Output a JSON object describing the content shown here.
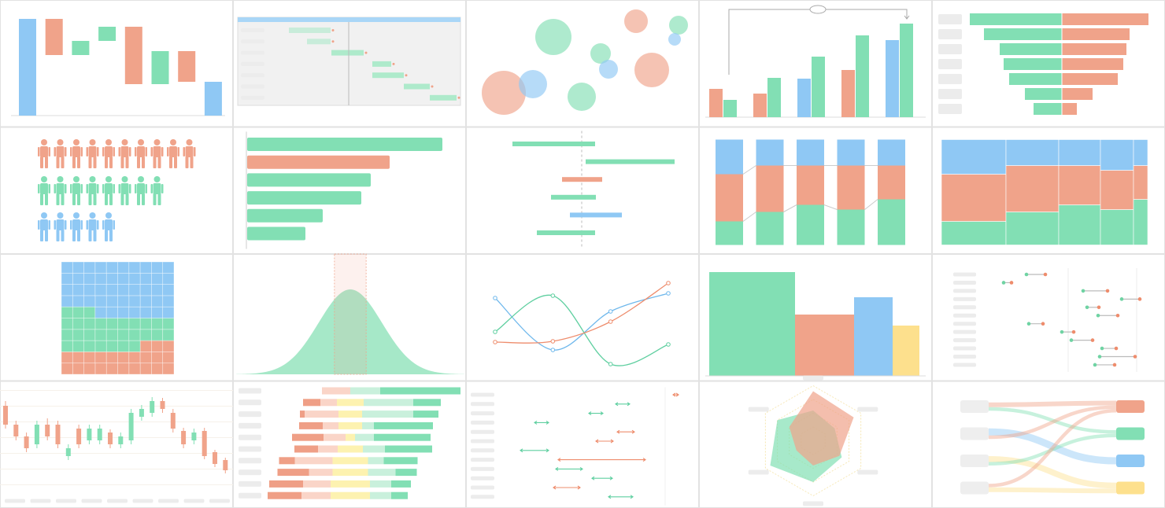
{
  "panels": [
    {
      "type": "waterfall",
      "values": [
        123,
        -46,
        18,
        18,
        -73,
        42,
        -39
      ],
      "ylim": [
        0,
        130
      ],
      "colors": {
        "total": "#8fc8f4",
        "up": "#82dfb4",
        "down": "#f0a38a"
      }
    },
    {
      "type": "gantt",
      "tasks": [
        [
          65,
          118
        ],
        [
          88,
          118
        ],
        [
          119,
          160
        ],
        [
          171,
          195
        ],
        [
          171,
          211
        ],
        [
          211,
          244
        ],
        [
          244,
          278
        ]
      ],
      "xlim": [
        0,
        283
      ],
      "marker": 141,
      "color": "#aeeacb",
      "header_color": "#a9d6f7",
      "dot_color": "#f0a38a"
    },
    {
      "type": "bubble",
      "x": [
        111,
        216,
        270,
        265,
        171,
        181,
        236,
        48,
        85,
        147
      ],
      "y": [
        114,
        134,
        129,
        111,
        93,
        73,
        72,
        43,
        54,
        38
      ],
      "size": [
        23,
        15,
        12,
        8,
        13,
        12,
        22,
        28,
        18,
        18
      ],
      "colors": [
        "#82dfb4",
        "#f0a38a",
        "#82dfb4",
        "#8fc8f4",
        "#82dfb4",
        "#8fc8f4",
        "#f0a38a",
        "#f0a38a",
        "#8fc8f4",
        "#82dfb4"
      ],
      "xlim": [
        0,
        296
      ],
      "ylim": [
        0,
        161
      ]
    },
    {
      "type": "grouped_bar",
      "series": [
        {
          "colors": [
            "#f0a38a",
            "#f0a38a",
            "#8fc8f4",
            "#f0a38a",
            "#8fc8f4"
          ],
          "values": [
            36,
            30,
            49,
            60,
            98
          ]
        },
        {
          "colors": [
            "#82dfb4",
            "#82dfb4",
            "#82dfb4",
            "#82dfb4",
            "#82dfb4"
          ],
          "values": [
            22,
            50,
            77,
            104,
            119
          ]
        }
      ],
      "ylim": [
        0,
        130
      ]
    },
    {
      "type": "butterfly",
      "left": [
        117,
        99,
        79,
        74,
        67,
        47,
        36
      ],
      "right": [
        110,
        86,
        82,
        78,
        71,
        39,
        19
      ],
      "colors": [
        "#82dfb4",
        "#f0a38a"
      ]
    },
    {
      "type": "pictogram",
      "values": [
        10,
        8,
        5
      ],
      "colors": [
        "#f0a38a",
        "#82dfb4",
        "#8fc8f4"
      ]
    },
    {
      "type": "hbar",
      "values": [
        248,
        181,
        157,
        145,
        96,
        74
      ],
      "colors": [
        "#82dfb4",
        "#f0a38a",
        "#82dfb4",
        "#82dfb4",
        "#82dfb4",
        "#82dfb4"
      ],
      "xlim": [
        0,
        260
      ]
    },
    {
      "type": "rangebar",
      "ranges": [
        [
          -88,
          17
        ],
        [
          5,
          118
        ],
        [
          -25,
          26
        ],
        [
          -39,
          18
        ],
        [
          -15,
          51
        ],
        [
          -57,
          17
        ]
      ],
      "colors": [
        "#82dfb4",
        "#82dfb4",
        "#f0a38a",
        "#82dfb4",
        "#8fc8f4",
        "#82dfb4"
      ],
      "xlim": [
        -147,
        149
      ]
    },
    {
      "type": "stack100",
      "series": [
        {
          "color": "#82dfb4",
          "values": [
            30,
            42,
            51,
            45,
            58
          ]
        },
        {
          "color": "#f0a38a",
          "values": [
            60,
            59,
            50,
            56,
            43
          ]
        },
        {
          "color": "#8fc8f4",
          "values": [
            44,
            33,
            33,
            33,
            33
          ]
        }
      ],
      "ylim": [
        0,
        134
      ]
    },
    {
      "type": "mekko",
      "widths": [
        82,
        67,
        53,
        42,
        18
      ],
      "series": [
        {
          "color": "#82dfb4",
          "values": [
            30,
            42,
            51,
            45,
            58
          ]
        },
        {
          "color": "#f0a38a",
          "values": [
            60,
            59,
            50,
            50,
            43
          ]
        },
        {
          "color": "#8fc8f4",
          "values": [
            44,
            33,
            33,
            39,
            33
          ]
        }
      ],
      "ylim": [
        0,
        134
      ]
    },
    {
      "type": "waffle",
      "values": [
        23,
        30,
        47
      ],
      "colors": [
        "#f0a38a",
        "#82dfb4",
        "#8fc8f4"
      ]
    },
    {
      "type": "density",
      "mean": 0,
      "sd": 1,
      "xlim": [
        -3.6,
        3.6
      ],
      "band": [
        -0.5,
        0.5
      ],
      "color": "#a6e8c8",
      "band_color": "#f0a38a"
    },
    {
      "type": "line",
      "x": [
        0,
        1,
        2,
        3
      ],
      "xlim": [
        0,
        3
      ],
      "series": [
        {
          "color": "#6fb8ec",
          "values": [
            101,
            35,
            84,
            107
          ]
        },
        {
          "color": "#5fcfa0",
          "values": [
            58,
            104,
            17,
            42
          ]
        },
        {
          "color": "#ee8c6c",
          "values": [
            45,
            46,
            71,
            120
          ]
        }
      ],
      "ylim": [
        0,
        130
      ]
    },
    {
      "type": "varwidth",
      "widths": [
        109,
        75,
        49,
        34
      ],
      "values": [
        132,
        78,
        100,
        64
      ],
      "colors": [
        "#82dfb4",
        "#f0a38a",
        "#8fc8f4",
        "#fde08d"
      ],
      "ylim": [
        0,
        140
      ]
    },
    {
      "type": "dumbbell",
      "pairs": [
        [
          120,
          144
        ],
        [
          91,
          101
        ],
        [
          192,
          223
        ],
        [
          241,
          264
        ],
        [
          197,
          212
        ],
        [
          211,
          236
        ],
        [
          123,
          141
        ],
        [
          165,
          180
        ],
        [
          177,
          204
        ],
        [
          216,
          234
        ],
        [
          213,
          258
        ],
        [
          207,
          232
        ]
      ],
      "colors": [
        "#6fd3a3",
        "#ee8c6c"
      ],
      "xlim": [
        0,
        296
      ]
    },
    {
      "type": "candlestick",
      "ohlc": [
        [
          104,
          80,
          75,
          110
        ],
        [
          80,
          65,
          60,
          85
        ],
        [
          65,
          50,
          45,
          70
        ],
        [
          55,
          80,
          50,
          85
        ],
        [
          80,
          65,
          60,
          88
        ],
        [
          80,
          55,
          50,
          85
        ],
        [
          40,
          50,
          35,
          55
        ],
        [
          75,
          55,
          50,
          80
        ],
        [
          60,
          75,
          55,
          80
        ],
        [
          60,
          75,
          55,
          80
        ],
        [
          70,
          55,
          50,
          74
        ],
        [
          55,
          65,
          50,
          70
        ],
        [
          60,
          95,
          55,
          100
        ],
        [
          90,
          100,
          85,
          105
        ],
        [
          95,
          110,
          90,
          115
        ],
        [
          110,
          100,
          95,
          114
        ],
        [
          95,
          75,
          70,
          100
        ],
        [
          72,
          55,
          50,
          76
        ],
        [
          60,
          70,
          55,
          75
        ],
        [
          72,
          40,
          36,
          76
        ],
        [
          45,
          30,
          26,
          48
        ],
        [
          35,
          22,
          18,
          38
        ]
      ],
      "ylim": [
        0,
        130
      ],
      "colors": {
        "up": "#82dfb4",
        "down": "#f0a38a"
      }
    },
    {
      "type": "likert",
      "rows": [
        [
          0,
          36,
          0,
          38,
          102
        ],
        [
          22,
          21,
          34,
          63,
          35
        ],
        [
          6,
          43,
          30,
          65,
          32
        ],
        [
          30,
          20,
          30,
          15,
          75
        ],
        [
          40,
          28,
          12,
          24,
          72
        ],
        [
          30,
          25,
          32,
          28,
          60
        ],
        [
          20,
          48,
          45,
          20,
          43
        ],
        [
          40,
          30,
          45,
          35,
          27
        ],
        [
          43,
          35,
          50,
          27,
          25
        ],
        [
          43,
          37,
          50,
          27,
          21
        ]
      ],
      "colors": [
        "#ef9f86",
        "#fad5c8",
        "#fdf2b0",
        "#c9f0dc",
        "#82dfb4"
      ]
    },
    {
      "type": "arrowrange",
      "ranges": [
        [
          263,
          270
        ],
        [
          190,
          208
        ],
        [
          156,
          174
        ],
        [
          87,
          105
        ],
        [
          192,
          214
        ],
        [
          165,
          187
        ],
        [
          69,
          105
        ],
        [
          117,
          228
        ],
        [
          114,
          148
        ],
        [
          160,
          186
        ],
        [
          111,
          145
        ],
        [
          181,
          212
        ]
      ],
      "colors": [
        "#ee8c6c",
        "#5fcfa0",
        "#5fcfa0",
        "#5fcfa0",
        "#ee8c6c",
        "#ee8c6c",
        "#5fcfa0",
        "#ee8c6c",
        "#5fcfa0",
        "#5fcfa0",
        "#ee8c6c",
        "#5fcfa0"
      ],
      "xlim": [
        0,
        296
      ]
    },
    {
      "type": "radar",
      "series": [
        {
          "color": "#82dfb4",
          "values": [
            0.55,
            0.45,
            0.6,
            0.75,
            0.9,
            0.75
          ]
        },
        {
          "color": "#f0a38a",
          "values": [
            0.9,
            0.85,
            0.55,
            0.45,
            0.35,
            0.5
          ]
        }
      ],
      "rlim": [
        0,
        1
      ]
    },
    {
      "type": "sankey",
      "flows": [
        [
          0,
          0,
          4
        ],
        [
          0,
          1,
          3
        ],
        [
          1,
          2,
          6
        ],
        [
          1,
          0,
          3
        ],
        [
          2,
          3,
          5
        ],
        [
          2,
          1,
          3
        ],
        [
          3,
          0,
          3
        ],
        [
          3,
          3,
          4
        ]
      ],
      "target_colors": [
        "#f0a38a",
        "#82dfb4",
        "#8fc8f4",
        "#fde08d"
      ],
      "source_color": "#eeeeee"
    }
  ]
}
